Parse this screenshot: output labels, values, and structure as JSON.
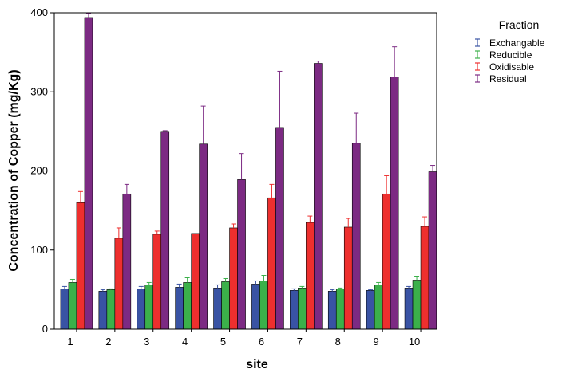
{
  "chart_data": {
    "type": "bar",
    "xlabel": "site",
    "ylabel": "Concentration of Copper (mg/Kg)",
    "categories": [
      "1",
      "2",
      "3",
      "4",
      "5",
      "6",
      "7",
      "8",
      "9",
      "10"
    ],
    "ylim": [
      0,
      400
    ],
    "yticks": [
      0,
      100,
      200,
      300,
      400
    ],
    "grid": false,
    "legend": {
      "title": "Fraction",
      "placement": "right"
    },
    "series": [
      {
        "name": "Exchangable",
        "color": "#3953a4",
        "values": [
          51,
          48,
          51,
          53,
          52,
          57,
          49,
          48,
          49,
          52
        ],
        "errors": [
          3,
          2,
          3,
          4,
          4,
          4,
          2,
          2,
          1,
          2
        ]
      },
      {
        "name": "Reducible",
        "color": "#3bb04a",
        "values": [
          59,
          50,
          56,
          59,
          60,
          61,
          52,
          51,
          56,
          62
        ],
        "errors": [
          4,
          1,
          3,
          6,
          4,
          7,
          2,
          1,
          3,
          5
        ]
      },
      {
        "name": "Oxidisable",
        "color": "#ee2f2e",
        "values": [
          160,
          115,
          120,
          121,
          128,
          166,
          135,
          129,
          171,
          130
        ],
        "errors": [
          14,
          13,
          4,
          0,
          5,
          17,
          8,
          11,
          23,
          12
        ]
      },
      {
        "name": "Residual",
        "color": "#7c2a83",
        "values": [
          394,
          171,
          250,
          234,
          189,
          255,
          336,
          235,
          319,
          199
        ],
        "errors": [
          5,
          12,
          1,
          48,
          33,
          71,
          3,
          38,
          38,
          8
        ]
      }
    ]
  }
}
